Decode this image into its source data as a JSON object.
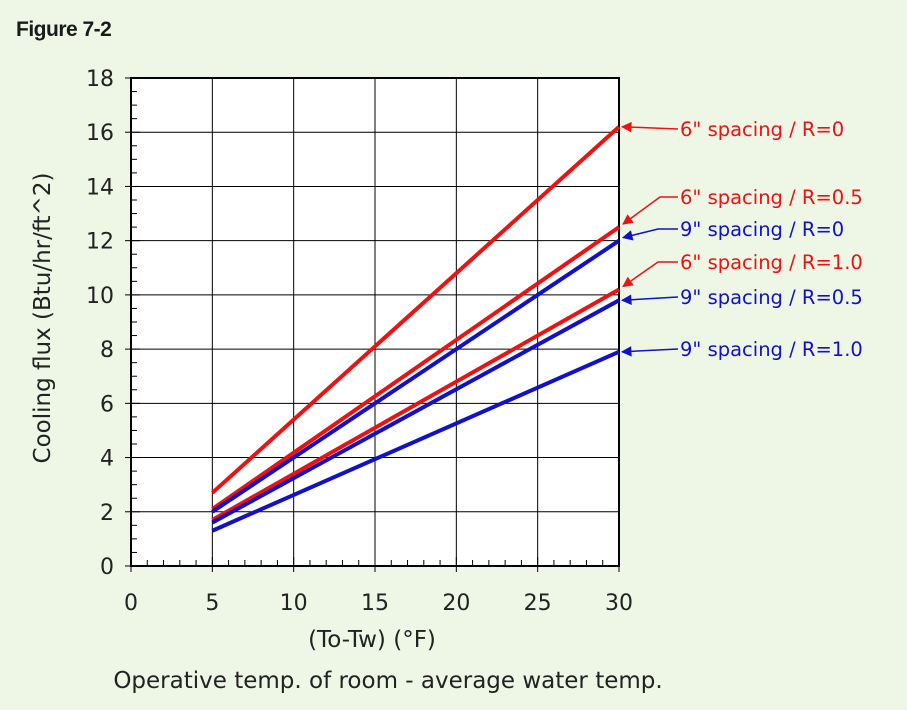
{
  "figure_label": "Figure 7-2",
  "colors": {
    "background": "#eef6e6",
    "plot_bg": "#ffffff",
    "red": "#ee1111",
    "blue": "#1111cc",
    "grid": "#000000"
  },
  "chart_data": {
    "type": "line",
    "title": "",
    "ylabel": "Cooling flux (Btu/hr/ft^2)",
    "xlabel_line1": "(To-Tw) (°F)",
    "xlabel_line2": "Operative temp. of room - average water temp.",
    "xlim": [
      0,
      30
    ],
    "ylim": [
      0,
      18
    ],
    "x_ticks": [
      "0",
      "5",
      "10",
      "15",
      "20",
      "25",
      "30"
    ],
    "y_ticks": [
      "0",
      "2",
      "4",
      "6",
      "8",
      "10",
      "12",
      "14",
      "16",
      "18"
    ],
    "grid": true,
    "legend_placement": "right, with arrows to line ends",
    "series": [
      {
        "name": "6\" spacing / R=0",
        "color": "#ee1111",
        "x": [
          5,
          30
        ],
        "y": [
          2.7,
          16.2
        ]
      },
      {
        "name": "6\" spacing / R=0.5",
        "color": "#ee1111",
        "x": [
          5,
          30
        ],
        "y": [
          2.1,
          12.5
        ]
      },
      {
        "name": "9\" spacing / R=0",
        "color": "#1111cc",
        "x": [
          5,
          30
        ],
        "y": [
          2.0,
          12.0
        ]
      },
      {
        "name": "6\" spacing / R=1.0",
        "color": "#ee1111",
        "x": [
          5,
          30
        ],
        "y": [
          1.7,
          10.2
        ]
      },
      {
        "name": "9\" spacing / R=0.5",
        "color": "#1111cc",
        "x": [
          5,
          30
        ],
        "y": [
          1.6,
          9.8
        ]
      },
      {
        "name": "9\" spacing / R=1.0",
        "color": "#1111cc",
        "x": [
          5,
          30
        ],
        "y": [
          1.3,
          7.9
        ]
      }
    ]
  }
}
